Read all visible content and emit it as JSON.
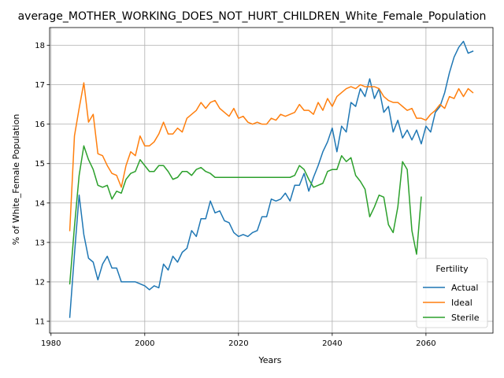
{
  "chart_data": {
    "type": "line",
    "title": "average_MOTHER_WORKING_DOES_NOT_HURT_CHILDREN_White_Female_Population",
    "xlabel": "Years",
    "ylabel": "% of White_Female Population",
    "xlim": [
      1979.7,
      2074.3
    ],
    "ylim": [
      10.7,
      18.45
    ],
    "x_ticks": [
      1980,
      2000,
      2020,
      2040,
      2060
    ],
    "y_ticks": [
      11,
      12,
      13,
      14,
      15,
      16,
      17,
      18
    ],
    "grid": true,
    "legend": {
      "title": "Fertility",
      "position": "lower-right"
    },
    "series": [
      {
        "name": "Actual",
        "color": "#1f77b4",
        "x": [
          1984,
          1985,
          1986,
          1987,
          1988,
          1989,
          1990,
          1991,
          1992,
          1993,
          1994,
          1995,
          1996,
          1997,
          1998,
          1999,
          2000,
          2001,
          2002,
          2003,
          2004,
          2005,
          2006,
          2007,
          2008,
          2009,
          2010,
          2011,
          2012,
          2013,
          2014,
          2015,
          2016,
          2017,
          2018,
          2019,
          2020,
          2021,
          2022,
          2023,
          2024,
          2025,
          2026,
          2027,
          2028,
          2029,
          2030,
          2031,
          2032,
          2033,
          2034,
          2035,
          2036,
          2037,
          2038,
          2039,
          2040,
          2041,
          2042,
          2043,
          2044,
          2045,
          2046,
          2047,
          2048,
          2049,
          2050,
          2051,
          2052,
          2053,
          2054,
          2055,
          2056,
          2057,
          2058,
          2059,
          2060,
          2061,
          2062,
          2063,
          2064,
          2065,
          2066,
          2067,
          2068,
          2069,
          2070
        ],
        "y": [
          11.1,
          12.7,
          14.2,
          13.2,
          12.6,
          12.5,
          12.05,
          12.45,
          12.65,
          12.35,
          12.35,
          12.0,
          12.0,
          12.0,
          12.0,
          11.95,
          11.9,
          11.8,
          11.9,
          11.85,
          12.45,
          12.3,
          12.65,
          12.5,
          12.75,
          12.85,
          13.3,
          13.15,
          13.6,
          13.6,
          14.05,
          13.75,
          13.8,
          13.55,
          13.5,
          13.25,
          13.15,
          13.2,
          13.15,
          13.25,
          13.3,
          13.65,
          13.65,
          14.1,
          14.05,
          14.1,
          14.25,
          14.05,
          14.45,
          14.45,
          14.75,
          14.3,
          14.65,
          14.95,
          15.3,
          15.55,
          15.9,
          15.3,
          15.95,
          15.8,
          16.55,
          16.45,
          16.9,
          16.7,
          17.15,
          16.65,
          16.9,
          16.3,
          16.45,
          15.8,
          16.1,
          15.65,
          15.85,
          15.6,
          15.85,
          15.5,
          15.95,
          15.8,
          16.3,
          16.45,
          16.8,
          17.3,
          17.7,
          17.95,
          18.1,
          17.8,
          17.85
        ]
      },
      {
        "name": "Ideal",
        "color": "#ff7f0e",
        "x": [
          1984,
          1985,
          1986,
          1987,
          1988,
          1989,
          1990,
          1991,
          1992,
          1993,
          1994,
          1995,
          1996,
          1997,
          1998,
          1999,
          2000,
          2001,
          2002,
          2003,
          2004,
          2005,
          2006,
          2007,
          2008,
          2009,
          2010,
          2011,
          2012,
          2013,
          2014,
          2015,
          2016,
          2017,
          2018,
          2019,
          2020,
          2021,
          2022,
          2023,
          2024,
          2025,
          2026,
          2027,
          2028,
          2029,
          2030,
          2031,
          2032,
          2033,
          2034,
          2035,
          2036,
          2037,
          2038,
          2039,
          2040,
          2041,
          2042,
          2043,
          2044,
          2045,
          2046,
          2047,
          2048,
          2049,
          2050,
          2051,
          2052,
          2053,
          2054,
          2055,
          2056,
          2057,
          2058,
          2059,
          2060,
          2061,
          2062,
          2063,
          2064,
          2065,
          2066,
          2067,
          2068,
          2069,
          2070
        ],
        "y": [
          13.3,
          15.7,
          16.4,
          17.05,
          16.05,
          16.25,
          15.25,
          15.2,
          14.95,
          14.75,
          14.7,
          14.4,
          14.95,
          15.3,
          15.2,
          15.7,
          15.45,
          15.45,
          15.55,
          15.75,
          16.05,
          15.75,
          15.75,
          15.9,
          15.8,
          16.15,
          16.25,
          16.35,
          16.55,
          16.4,
          16.55,
          16.6,
          16.4,
          16.3,
          16.2,
          16.4,
          16.15,
          16.2,
          16.05,
          16.0,
          16.05,
          16.0,
          16.0,
          16.15,
          16.1,
          16.25,
          16.2,
          16.25,
          16.3,
          16.5,
          16.35,
          16.35,
          16.25,
          16.55,
          16.35,
          16.65,
          16.45,
          16.7,
          16.8,
          16.9,
          16.95,
          16.9,
          17.0,
          16.95,
          16.95,
          16.95,
          16.9,
          16.7,
          16.6,
          16.55,
          16.55,
          16.45,
          16.35,
          16.4,
          16.15,
          16.15,
          16.1,
          16.25,
          16.35,
          16.5,
          16.4,
          16.7,
          16.65,
          16.9,
          16.7,
          16.9,
          16.8
        ]
      },
      {
        "name": "Sterile",
        "color": "#2ca02c",
        "x": [
          1984,
          1985,
          1986,
          1987,
          1988,
          1989,
          1990,
          1991,
          1992,
          1993,
          1994,
          1995,
          1996,
          1997,
          1998,
          1999,
          2000,
          2001,
          2002,
          2003,
          2004,
          2005,
          2006,
          2007,
          2008,
          2009,
          2010,
          2011,
          2012,
          2013,
          2014,
          2015,
          2016,
          2017,
          2018,
          2019,
          2020,
          2021,
          2022,
          2023,
          2024,
          2025,
          2026,
          2027,
          2028,
          2029,
          2030,
          2031,
          2032,
          2033,
          2034,
          2035,
          2036,
          2037,
          2038,
          2039,
          2040,
          2041,
          2042,
          2043,
          2044,
          2045,
          2046,
          2047,
          2048,
          2049,
          2050,
          2051,
          2052,
          2053,
          2054,
          2055,
          2056,
          2057,
          2058,
          2059
        ],
        "y": [
          11.95,
          13.4,
          14.7,
          15.45,
          15.1,
          14.85,
          14.45,
          14.4,
          14.45,
          14.1,
          14.3,
          14.25,
          14.6,
          14.75,
          14.8,
          15.1,
          14.95,
          14.8,
          14.8,
          14.95,
          14.95,
          14.8,
          14.6,
          14.65,
          14.8,
          14.8,
          14.7,
          14.85,
          14.9,
          14.8,
          14.75,
          14.65,
          14.65,
          14.65,
          14.65,
          14.65,
          14.65,
          14.65,
          14.65,
          14.65,
          14.65,
          14.65,
          14.65,
          14.65,
          14.65,
          14.65,
          14.65,
          14.65,
          14.7,
          14.95,
          14.85,
          14.6,
          14.4,
          14.45,
          14.5,
          14.8,
          14.85,
          14.85,
          15.2,
          15.05,
          15.15,
          14.7,
          14.55,
          14.35,
          13.65,
          13.9,
          14.2,
          14.15,
          13.45,
          13.25,
          13.9,
          15.05,
          14.85,
          13.3,
          12.7,
          14.15
        ]
      }
    ]
  }
}
